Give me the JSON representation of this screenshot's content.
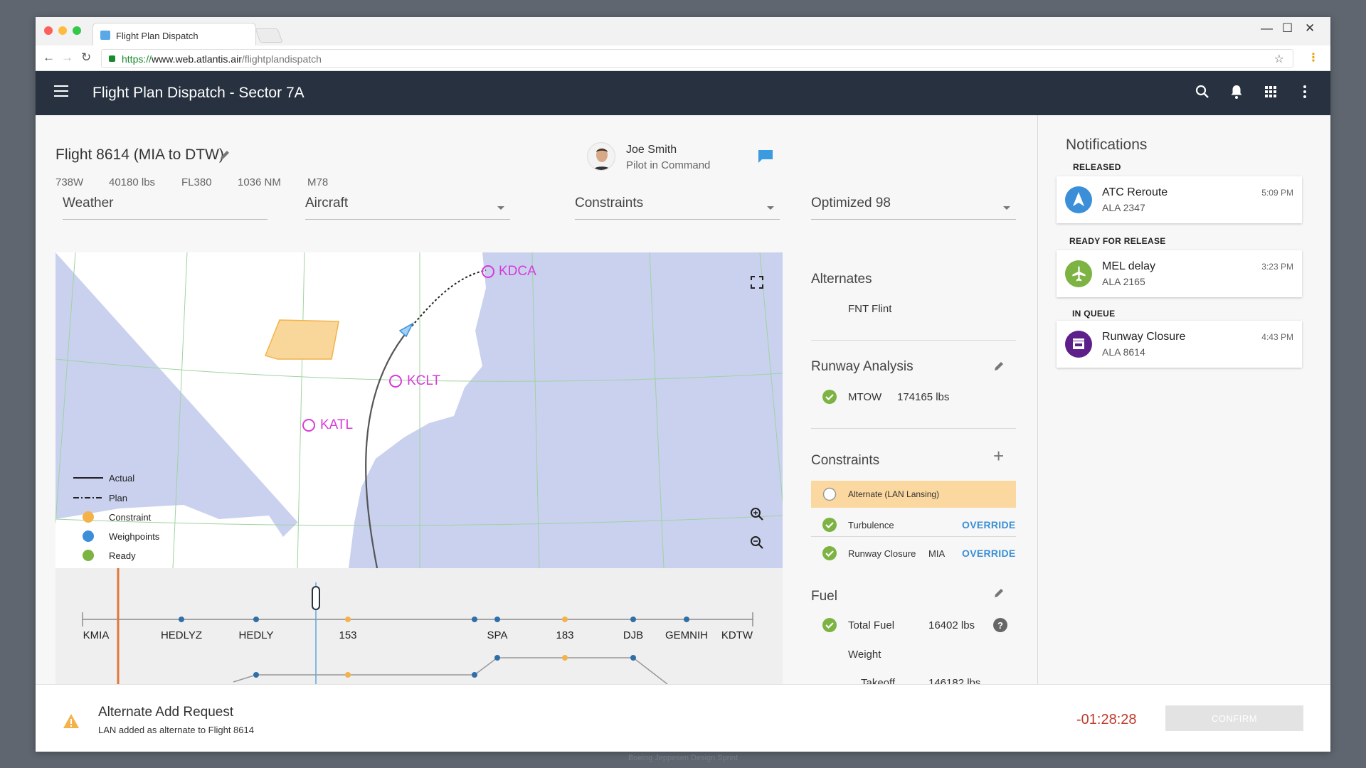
{
  "browser": {
    "tab_title": "Flight Plan Dispatch",
    "url_scheme": "https://",
    "url_host": "www.web.atlantis.air",
    "url_path": "/flightplandispatch"
  },
  "appbar": {
    "title": "Flight Plan Dispatch - Sector 7A"
  },
  "flight": {
    "title": "Flight 8614 (MIA to DTW)",
    "specs": [
      "738W",
      "40180 lbs",
      "FL380",
      "1036 NM",
      "M78"
    ]
  },
  "pilot": {
    "name": "Joe Smith",
    "role": "Pilot in Command"
  },
  "dropdowns": {
    "weather": "Weather",
    "aircraft": "Aircraft",
    "constraints": "Constraints",
    "optimized": "Optimized 98"
  },
  "map": {
    "airports": [
      "KDCA",
      "KCLT",
      "KATL"
    ],
    "legend": [
      "Actual",
      "Plan",
      "Constraint",
      "Weighpoints",
      "Ready"
    ],
    "colors": {
      "water": "#c9d1ef",
      "constraint": "#f4b24a",
      "waypoint": "#3b8fd9",
      "ready": "#7cb342",
      "airport": "#d83ad8"
    }
  },
  "timeline": {
    "labels": [
      "KMIA",
      "HEDLYZ",
      "HEDLY",
      "153",
      "SPA",
      "183",
      "DJB",
      "GEMNIH",
      "KDTW"
    ]
  },
  "alternates": {
    "title": "Alternates",
    "value": "FNT Flint"
  },
  "runway": {
    "title": "Runway Analysis",
    "label": "MTOW",
    "value": "174165 lbs"
  },
  "constraints": {
    "title": "Constraints",
    "items": [
      {
        "label": "Alternate (LAN Lansing)"
      },
      {
        "label": "Turbulence",
        "action": "OVERRIDE"
      },
      {
        "label": "Runway Closure",
        "extra": "MIA",
        "action": "OVERRIDE"
      }
    ]
  },
  "fuel": {
    "title": "Fuel",
    "total_label": "Total Fuel",
    "total_value": "16402 lbs",
    "weight_label": "Weight",
    "takeoff_label": "Takeoff",
    "takeoff_value": "146182 lbs"
  },
  "notifications": {
    "title": "Notifications",
    "groups": [
      {
        "label": "RELEASED",
        "title": "ATC Reroute",
        "sub": "ALA 2347",
        "time": "5:09 PM",
        "color": "#3b8fd9"
      },
      {
        "label": "READY FOR RELEASE",
        "title": "MEL delay",
        "sub": "ALA 2165",
        "time": "3:23 PM",
        "color": "#7cb342"
      },
      {
        "label": "IN QUEUE",
        "title": "Runway Closure",
        "sub": "ALA 8614",
        "time": "4:43 PM",
        "color": "#5e1f8a"
      }
    ]
  },
  "bottom": {
    "title": "Alternate Add Request",
    "subtitle": "LAN added as alternate to Flight 8614",
    "countdown": "-01:28:28",
    "confirm": "CONFIRM"
  },
  "footer": "Boeing Jeppesen Design Sprint"
}
